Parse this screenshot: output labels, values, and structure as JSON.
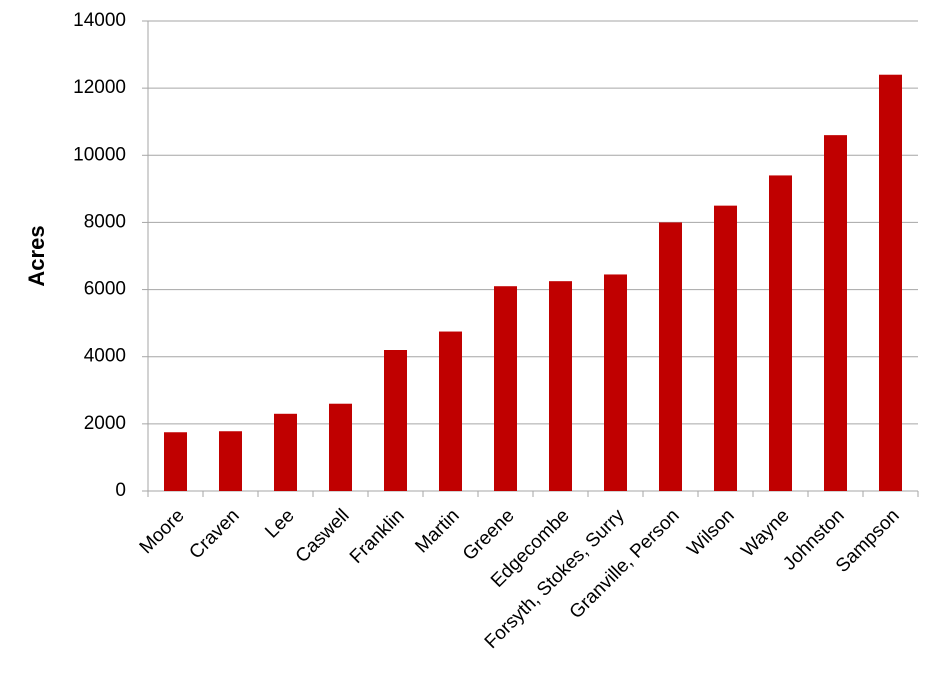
{
  "chart_data": {
    "type": "bar",
    "y_label": "Acres",
    "categories": [
      "Moore",
      "Craven",
      "Lee",
      "Caswell",
      "Franklin",
      "Martin",
      "Greene",
      "Edgecombe",
      "Forsyth, Stokes, Surry",
      "Granville, Person",
      "Wilson",
      "Wayne",
      "Johnston",
      "Sampson"
    ],
    "values": [
      1750,
      1780,
      2300,
      2600,
      4200,
      4750,
      6100,
      6250,
      6450,
      8000,
      8500,
      9400,
      10600,
      12400
    ],
    "color": "#c00000",
    "ylim": [
      0,
      14000
    ],
    "yticks": [
      0,
      2000,
      4000,
      6000,
      8000,
      10000,
      12000,
      14000
    ],
    "grid": true
  }
}
